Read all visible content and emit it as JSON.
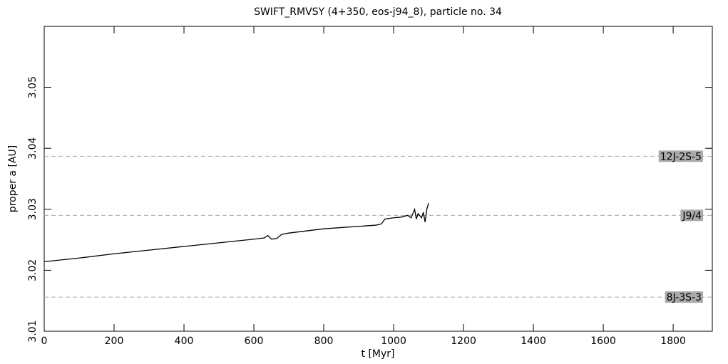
{
  "chart_data": {
    "type": "line",
    "title": "SWIFT_RMVSY (4+350, eos-j94_8), particle no. 34",
    "x_label": "t [Myr]",
    "y_label": "proper a [AU]",
    "x": [
      0,
      100,
      200,
      300,
      400,
      500,
      600,
      630,
      640,
      650,
      665,
      680,
      700,
      800,
      900,
      950,
      965,
      975,
      1000,
      1020,
      1040,
      1050,
      1060,
      1065,
      1070,
      1080,
      1085,
      1090,
      1095,
      1100
    ],
    "values": [
      3.0214,
      3.022,
      3.0227,
      3.0233,
      3.0239,
      3.0245,
      3.0251,
      3.0253,
      3.0257,
      3.0251,
      3.0252,
      3.0259,
      3.0261,
      3.0268,
      3.0272,
      3.0274,
      3.0276,
      3.0284,
      3.0286,
      3.0287,
      3.029,
      3.0286,
      3.03,
      3.0284,
      3.0293,
      3.0286,
      3.0295,
      3.0279,
      3.03,
      3.031
    ],
    "color": "#000000",
    "xlim": [
      0,
      1912
    ],
    "ylim": [
      3.01,
      3.06
    ],
    "xticks": [
      0,
      200,
      400,
      600,
      800,
      1000,
      1200,
      1400,
      1600,
      1800
    ],
    "yticks": [
      3.01,
      3.02,
      3.03,
      3.04,
      3.05
    ],
    "reference_lines": [
      {
        "label": "12J-2S-5",
        "value": 3.0387
      },
      {
        "label": "J9/4",
        "value": 3.029
      },
      {
        "label": "8J-3S-3",
        "value": 3.0156
      }
    ],
    "reference_color": "#aaaaaa"
  }
}
